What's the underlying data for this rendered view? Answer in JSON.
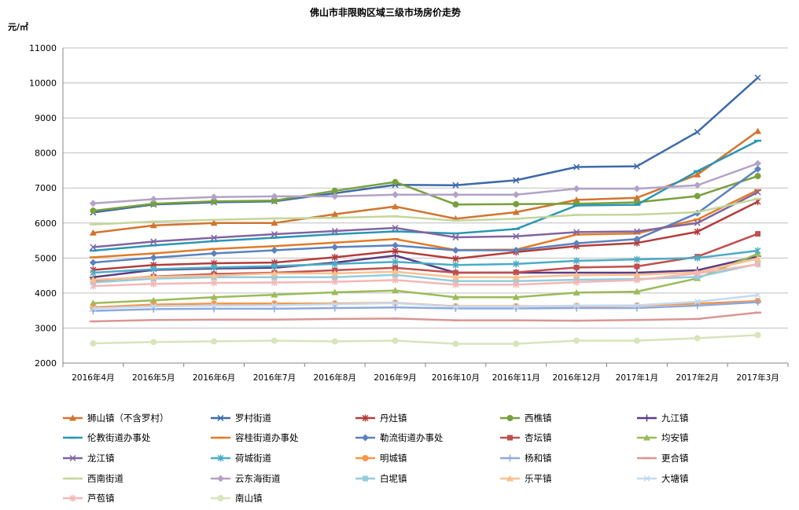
{
  "chart_data": {
    "type": "line",
    "title": "佛山市非限购区域三级市场房价走势",
    "ylabel": "元/㎡",
    "xlabel": "",
    "ylim": [
      2000,
      11000
    ],
    "yticks": [
      2000,
      3000,
      4000,
      5000,
      6000,
      7000,
      8000,
      9000,
      10000,
      11000
    ],
    "grid": true,
    "legend_position": "bottom",
    "categories": [
      "2016年4月",
      "2016年5月",
      "2016年6月",
      "2016年7月",
      "2016年8月",
      "2016年9月",
      "2016年10月",
      "2016年11月",
      "2016年12月",
      "2017年1月",
      "2017年2月",
      "2017年3月"
    ],
    "series": [
      {
        "name": "狮山镇（不含罗村）",
        "color": "#d2742f",
        "marker": "triangle",
        "values": [
          5720,
          5930,
          6000,
          6000,
          6250,
          6470,
          6120,
          6310,
          6660,
          6720,
          7380,
          8620
        ]
      },
      {
        "name": "罗村街道",
        "color": "#3c6aaa",
        "marker": "x",
        "values": [
          6300,
          6530,
          6590,
          6620,
          6850,
          7090,
          7080,
          7220,
          7600,
          7620,
          8600,
          10150
        ]
      },
      {
        "name": "丹灶镇",
        "color": "#b43c3c",
        "marker": "star",
        "values": [
          4660,
          4800,
          4850,
          4870,
          5020,
          5200,
          4980,
          5170,
          5340,
          5430,
          5750,
          6610
        ]
      },
      {
        "name": "西樵镇",
        "color": "#78a03c",
        "marker": "circle",
        "values": [
          6350,
          6550,
          6620,
          6640,
          6920,
          7170,
          6530,
          6540,
          6550,
          6590,
          6770,
          7340
        ]
      },
      {
        "name": "九江镇",
        "color": "#5a3c82",
        "marker": "plus",
        "values": [
          4450,
          4660,
          4700,
          4720,
          4870,
          5070,
          4580,
          4580,
          4580,
          4580,
          4650,
          5050
        ]
      },
      {
        "name": "伦教街道办事处",
        "color": "#2a96b4",
        "marker": "dash",
        "values": [
          5210,
          5360,
          5480,
          5580,
          5680,
          5760,
          5700,
          5830,
          6500,
          6520,
          7480,
          8350
        ]
      },
      {
        "name": "容桂街道办事处",
        "color": "#e07c28",
        "marker": "dash",
        "values": [
          5020,
          5130,
          5260,
          5340,
          5440,
          5540,
          5230,
          5240,
          5670,
          5700,
          6100,
          6940
        ]
      },
      {
        "name": "勒流街道办事处",
        "color": "#5a82be",
        "marker": "diamond",
        "values": [
          4870,
          5010,
          5130,
          5220,
          5310,
          5360,
          5220,
          5220,
          5420,
          5540,
          6280,
          7540
        ]
      },
      {
        "name": "杏坛镇",
        "color": "#c0504d",
        "marker": "square",
        "values": [
          4360,
          4470,
          4540,
          4580,
          4650,
          4720,
          4580,
          4590,
          4730,
          4760,
          5040,
          5690
        ]
      },
      {
        "name": "均安镇",
        "color": "#9bbb59",
        "marker": "triangle",
        "values": [
          3710,
          3790,
          3880,
          3950,
          4020,
          4070,
          3880,
          3880,
          4010,
          4040,
          4420,
          5120
        ]
      },
      {
        "name": "龙江镇",
        "color": "#8064a2",
        "marker": "x",
        "values": [
          5310,
          5470,
          5580,
          5680,
          5770,
          5860,
          5590,
          5620,
          5740,
          5760,
          6000,
          6880
        ]
      },
      {
        "name": "荷城街道",
        "color": "#4bacc6",
        "marker": "star",
        "values": [
          4580,
          4680,
          4730,
          4770,
          4830,
          4890,
          4800,
          4830,
          4920,
          4960,
          5000,
          5210
        ]
      },
      {
        "name": "明城镇",
        "color": "#f79646",
        "marker": "circle",
        "values": [
          3590,
          3670,
          3700,
          3700,
          3700,
          3720,
          3620,
          3620,
          3630,
          3640,
          3700,
          3770
        ]
      },
      {
        "name": "杨和镇",
        "color": "#8ea9db",
        "marker": "plus",
        "values": [
          3490,
          3540,
          3550,
          3550,
          3570,
          3590,
          3560,
          3560,
          3570,
          3570,
          3640,
          3740
        ]
      },
      {
        "name": "更合镇",
        "color": "#d99694",
        "marker": "dash",
        "values": [
          3190,
          3230,
          3240,
          3240,
          3260,
          3270,
          3220,
          3220,
          3210,
          3230,
          3260,
          3440
        ]
      },
      {
        "name": "西南街道",
        "color": "#c3d69b",
        "marker": "dash",
        "values": [
          5960,
          6040,
          6090,
          6130,
          6150,
          6190,
          6070,
          6120,
          6230,
          6240,
          6310,
          6690
        ]
      },
      {
        "name": "云东海街道",
        "color": "#b3a2c7",
        "marker": "diamond",
        "values": [
          6560,
          6680,
          6740,
          6760,
          6760,
          6810,
          6810,
          6810,
          6980,
          6980,
          7080,
          7700
        ]
      },
      {
        "name": "白坭镇",
        "color": "#93cddd",
        "marker": "square",
        "values": [
          4300,
          4410,
          4450,
          4450,
          4450,
          4520,
          4340,
          4340,
          4380,
          4400,
          4460,
          4830
        ]
      },
      {
        "name": "乐平镇",
        "color": "#fac090",
        "marker": "triangle",
        "values": [
          4380,
          4460,
          4500,
          4560,
          4560,
          4610,
          4450,
          4450,
          4510,
          4520,
          4590,
          4980
        ]
      },
      {
        "name": "大塘镇",
        "color": "#c5d9f1",
        "marker": "x",
        "values": [
          3560,
          3620,
          3640,
          3650,
          3680,
          3710,
          3610,
          3610,
          3640,
          3650,
          3750,
          3940
        ]
      },
      {
        "name": "芦苞镇",
        "color": "#f2b8b6",
        "marker": "star",
        "values": [
          4200,
          4260,
          4290,
          4300,
          4320,
          4370,
          4240,
          4240,
          4310,
          4370,
          4560,
          4820
        ]
      },
      {
        "name": "南山镇",
        "color": "#d7e4bc",
        "marker": "circle",
        "values": [
          2560,
          2600,
          2620,
          2640,
          2620,
          2640,
          2550,
          2550,
          2640,
          2640,
          2710,
          2800
        ]
      }
    ]
  }
}
